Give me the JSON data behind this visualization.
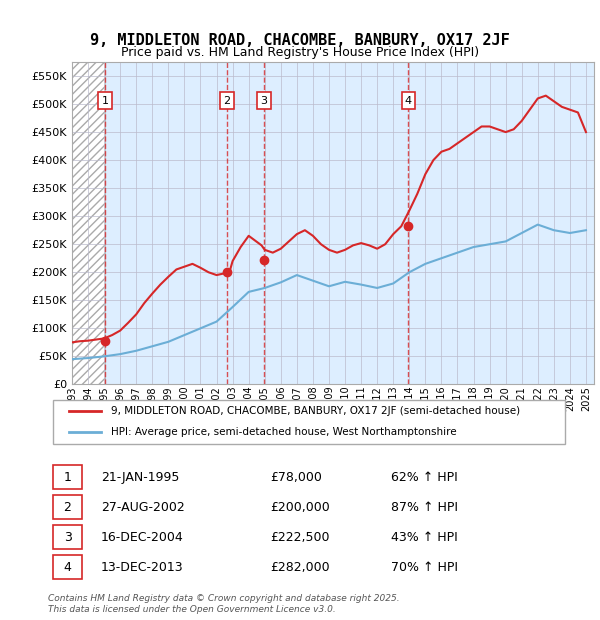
{
  "title": "9, MIDDLETON ROAD, CHACOMBE, BANBURY, OX17 2JF",
  "subtitle": "Price paid vs. HM Land Registry's House Price Index (HPI)",
  "sale_dates": [
    "1995-01-21",
    "2002-08-27",
    "2004-12-16",
    "2013-12-13"
  ],
  "sale_prices": [
    78000,
    200000,
    222500,
    282000
  ],
  "sale_labels": [
    "1",
    "2",
    "3",
    "4"
  ],
  "sale_info": [
    "21-JAN-1995    £78,000    62% ↑ HPI",
    "27-AUG-2002    £200,000    87% ↑ HPI",
    "16-DEC-2004    £222,500    43% ↑ HPI",
    "13-DEC-2013    £282,000    70% ↑ HPI"
  ],
  "legend_line1": "9, MIDDLETON ROAD, CHACOMBE, BANBURY, OX17 2JF (semi-detached house)",
  "legend_line2": "HPI: Average price, semi-detached house, West Northamptonshire",
  "footer": "Contains HM Land Registry data © Crown copyright and database right 2025.\nThis data is licensed under the Open Government Licence v3.0.",
  "ylim": [
    0,
    575000
  ],
  "yticks": [
    0,
    50000,
    100000,
    150000,
    200000,
    250000,
    300000,
    350000,
    400000,
    450000,
    500000,
    550000
  ],
  "ytick_labels": [
    "£0",
    "£50K",
    "£100K",
    "£150K",
    "£200K",
    "£250K",
    "£300K",
    "£350K",
    "£400K",
    "£450K",
    "£500K",
    "£550K"
  ],
  "xmin": 1993.0,
  "xmax": 2025.5,
  "hpi_color": "#6baed6",
  "price_color": "#d62728",
  "sale_marker_color": "#d62728",
  "background_hatch_color": "#cccccc",
  "grid_color": "#cccccc",
  "hpi_x": [
    1993,
    1994,
    1995,
    1996,
    1997,
    1998,
    1999,
    2000,
    2001,
    2002,
    2003,
    2004,
    2005,
    2006,
    2007,
    2008,
    2009,
    2010,
    2011,
    2012,
    2013,
    2014,
    2015,
    2016,
    2017,
    2018,
    2019,
    2020,
    2021,
    2022,
    2023,
    2024,
    2025
  ],
  "hpi_y": [
    45000,
    47000,
    50000,
    54000,
    60000,
    68000,
    76000,
    88000,
    100000,
    112000,
    138000,
    165000,
    172000,
    182000,
    195000,
    185000,
    175000,
    183000,
    178000,
    172000,
    180000,
    200000,
    215000,
    225000,
    235000,
    245000,
    250000,
    255000,
    270000,
    285000,
    275000,
    270000,
    275000
  ],
  "price_x": [
    1993,
    1993.5,
    1994,
    1994.5,
    1995,
    1995.5,
    1996,
    1996.5,
    1997,
    1997.5,
    1998,
    1998.5,
    1999,
    1999.5,
    2000,
    2000.5,
    2001,
    2001.5,
    2002,
    2002.8,
    2003,
    2003.5,
    2004,
    2004.8,
    2005,
    2005.5,
    2006,
    2006.5,
    2007,
    2007.5,
    2008,
    2008.5,
    2009,
    2009.5,
    2010,
    2010.5,
    2011,
    2011.5,
    2012,
    2012.5,
    2013,
    2013.5,
    2014,
    2014.5,
    2015,
    2015.5,
    2016,
    2016.5,
    2017,
    2017.5,
    2018,
    2018.5,
    2019,
    2019.5,
    2020,
    2020.5,
    2021,
    2021.5,
    2022,
    2022.5,
    2023,
    2023.5,
    2024,
    2024.5,
    2025
  ],
  "price_y": [
    75000,
    77000,
    78000,
    80000,
    82000,
    88000,
    96000,
    110000,
    125000,
    145000,
    162000,
    178000,
    192000,
    205000,
    210000,
    215000,
    208000,
    200000,
    195000,
    200000,
    220000,
    245000,
    265000,
    248000,
    240000,
    235000,
    242000,
    255000,
    268000,
    275000,
    265000,
    250000,
    240000,
    235000,
    240000,
    248000,
    252000,
    248000,
    242000,
    250000,
    268000,
    282000,
    310000,
    340000,
    375000,
    400000,
    415000,
    420000,
    430000,
    440000,
    450000,
    460000,
    460000,
    455000,
    450000,
    455000,
    470000,
    490000,
    510000,
    515000,
    505000,
    495000,
    490000,
    485000,
    450000
  ]
}
